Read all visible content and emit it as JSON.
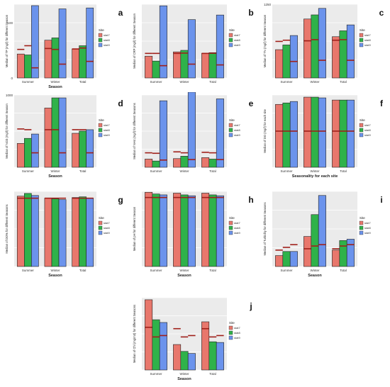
{
  "sites": [
    {
      "name": "stat7",
      "color": "#e8776c"
    },
    {
      "name": "stat8",
      "color": "#2fb24a"
    },
    {
      "name": "stat9",
      "color": "#6b93ec"
    }
  ],
  "legend_title": "Site",
  "chart_data": [
    {
      "id": "a",
      "type": "bar",
      "letter": "a",
      "xlabel": "Season",
      "ylabel": "Median of TP  (mg/l) for different Season",
      "categories": [
        "Summer",
        "Winter",
        "Total"
      ],
      "ylim": [
        0,
        160
      ],
      "yticks": [
        "0",
        "",
        "",
        "100",
        ""
      ],
      "series": [
        {
          "name": "stat7",
          "values": [
            52,
            82,
            63
          ]
        },
        {
          "name": "stat8",
          "values": [
            50,
            87,
            70
          ]
        },
        {
          "name": "stat9",
          "values": [
            157,
            150,
            152
          ]
        }
      ],
      "ref_lines": [
        [
          62,
          70,
          22
        ],
        [
          64,
          62,
          30
        ],
        [
          63,
          65,
          36
        ]
      ]
    },
    {
      "id": "b",
      "type": "bar",
      "letter": "b",
      "xlabel": "",
      "ylabel": "Median of CRP (mg/l) for different Season",
      "categories": [
        "Summer",
        "Winter",
        "Total"
      ],
      "ylim": [
        0,
        480
      ],
      "yticks": [
        "",
        "",
        "",
        "",
        ""
      ],
      "series": [
        {
          "name": "stat7",
          "values": [
            142,
            170,
            160
          ]
        },
        {
          "name": "stat8",
          "values": [
            110,
            180,
            165
          ]
        },
        {
          "name": "stat9",
          "values": [
            470,
            380,
            410
          ]
        }
      ],
      "ref_lines": [
        [
          160,
          160,
          80
        ],
        [
          160,
          162,
          90
        ],
        [
          160,
          161,
          85
        ]
      ]
    },
    {
      "id": "c",
      "type": "bar",
      "letter": "c",
      "xlabel": "",
      "ylabel": "Median of TN  (mg/l) for different Season",
      "categories": [
        "Summer",
        "Winter",
        "Total"
      ],
      "ylim": [
        0,
        1250
      ],
      "yticks": [
        "",
        "",
        "",
        "",
        "1250"
      ],
      "series": [
        {
          "name": "stat7",
          "values": [
            480,
            1000,
            700
          ]
        },
        {
          "name": "stat8",
          "values": [
            560,
            1070,
            800
          ]
        },
        {
          "name": "stat9",
          "values": [
            720,
            1180,
            900
          ]
        }
      ],
      "ref_lines": [
        [
          620,
          640,
          280
        ],
        [
          630,
          650,
          300
        ],
        [
          640,
          650,
          300
        ]
      ]
    },
    {
      "id": "d",
      "type": "bar",
      "letter": "d",
      "xlabel": "Season",
      "ylabel": "Median of NO3  (mg/l) for different Season",
      "categories": [
        "Summer",
        "Winter",
        "Total"
      ],
      "ylim": [
        0,
        1000
      ],
      "yticks": [
        "",
        "",
        "",
        "",
        "1000"
      ],
      "series": [
        {
          "name": "stat7",
          "values": [
            330,
            820,
            470
          ]
        },
        {
          "name": "stat8",
          "values": [
            400,
            960,
            500
          ]
        },
        {
          "name": "stat9",
          "values": [
            460,
            960,
            520
          ]
        }
      ],
      "ref_lines": [
        [
          530,
          520,
          200
        ],
        [
          520,
          520,
          200
        ],
        [
          520,
          520,
          200
        ]
      ]
    },
    {
      "id": "e",
      "type": "bar",
      "letter": "e",
      "xlabel": "",
      "ylabel": "Median of NH4  (mg/l) for different Seasons",
      "categories": [
        "Summer",
        "Winter",
        "Total"
      ],
      "ylim": [
        0,
        1500
      ],
      "yticks": [
        "",
        "",
        "",
        "",
        ""
      ],
      "series": [
        {
          "name": "stat7",
          "values": [
            170,
            180,
            200
          ]
        },
        {
          "name": "stat8",
          "values": [
            130,
            230,
            170
          ]
        },
        {
          "name": "stat9",
          "values": [
            1380,
            1560,
            1420
          ]
        }
      ],
      "ref_lines": [
        [
          300,
          290,
          150
        ],
        [
          320,
          300,
          160
        ],
        [
          310,
          300,
          160
        ]
      ]
    },
    {
      "id": "f",
      "type": "bar",
      "letter": "f",
      "xlabel": "Seasonality for each site",
      "ylabel": "Median of DO (mg/l) for each site",
      "categories": [
        "Summer",
        "Winter",
        "Total"
      ],
      "ylim": [
        0,
        10
      ],
      "yticks": [
        "",
        "",
        "",
        "",
        ""
      ],
      "series": [
        {
          "name": "stat7",
          "values": [
            8.7,
            9.7,
            9.3
          ]
        },
        {
          "name": "stat8",
          "values": [
            8.9,
            9.7,
            9.3
          ]
        },
        {
          "name": "stat9",
          "values": [
            9.1,
            9.6,
            9.3
          ]
        }
      ],
      "ref_lines": [
        [
          5.0,
          5.0,
          5.0
        ],
        [
          5.0,
          5.0,
          5.0
        ],
        [
          5.0,
          5.0,
          5.0
        ]
      ]
    },
    {
      "id": "g",
      "type": "bar",
      "letter": "g",
      "xlabel": "Season",
      "ylabel": "Median of DO% for different Seasons",
      "categories": [
        "Summer",
        "Winter",
        "Total"
      ],
      "ylim": [
        0,
        110
      ],
      "yticks": [
        "",
        "",
        "",
        "",
        ""
      ],
      "series": [
        {
          "name": "stat7",
          "values": [
            103,
            100,
            101
          ]
        },
        {
          "name": "stat8",
          "values": [
            107,
            99,
            102
          ]
        },
        {
          "name": "stat9",
          "values": [
            104,
            98,
            100
          ]
        }
      ],
      "ref_lines": [
        [
          100,
          100,
          100
        ],
        [
          100,
          100,
          100
        ],
        [
          100,
          100,
          100
        ]
      ]
    },
    {
      "id": "h",
      "type": "bar",
      "letter": "h",
      "xlabel": "Season",
      "ylabel": "Median of pH for different Season",
      "categories": [
        "Summer",
        "Winter",
        "Total"
      ],
      "ylim": [
        0,
        8.6
      ],
      "yticks": [
        "",
        "",
        "",
        "",
        ""
      ],
      "series": [
        {
          "name": "stat7",
          "values": [
            8.5,
            8.4,
            8.4
          ]
        },
        {
          "name": "stat8",
          "values": [
            8.3,
            8.2,
            8.2
          ]
        },
        {
          "name": "stat9",
          "values": [
            8.2,
            8.1,
            8.1
          ]
        }
      ],
      "ref_lines": [
        [
          7.9,
          7.9,
          7.9
        ],
        [
          7.9,
          7.9,
          7.9
        ],
        [
          7.9,
          7.9,
          7.9
        ]
      ]
    },
    {
      "id": "i",
      "type": "bar",
      "letter": "i",
      "xlabel": "Season",
      "ylabel": "Median of Turbidity                for different Seasons",
      "categories": [
        "Summer",
        "Winter",
        "Total"
      ],
      "ylim": [
        0,
        55
      ],
      "yticks": [
        "",
        "",
        "",
        "",
        ""
      ],
      "series": [
        {
          "name": "stat7",
          "values": [
            8,
            22,
            12
          ]
        },
        {
          "name": "stat8",
          "values": [
            11,
            38,
            19
          ]
        },
        {
          "name": "stat9",
          "values": [
            11,
            52,
            20
          ]
        }
      ],
      "ref_lines": [
        [
          12,
          14,
          16
        ],
        [
          13,
          15,
          16
        ],
        [
          13,
          15,
          16
        ]
      ]
    },
    {
      "id": "j",
      "type": "bar",
      "letter": "j",
      "xlabel": "Season",
      "ylabel": "Median of Chl  (mg/m3) for different Seasons",
      "categories": [
        "Summer",
        "Winter",
        "Total"
      ],
      "ylim": [
        0,
        105
      ],
      "yticks": [
        "",
        "",
        "",
        "",
        ""
      ],
      "series": [
        {
          "name": "stat7",
          "values": [
            102,
            37,
            70
          ]
        },
        {
          "name": "stat8",
          "values": [
            73,
            27,
            41
          ]
        },
        {
          "name": "stat9",
          "values": [
            69,
            24,
            40
          ]
        }
      ],
      "ref_lines": [
        [
          62,
          48,
          50
        ],
        [
          60,
          48,
          50
        ],
        [
          60,
          48,
          50
        ]
      ]
    }
  ]
}
